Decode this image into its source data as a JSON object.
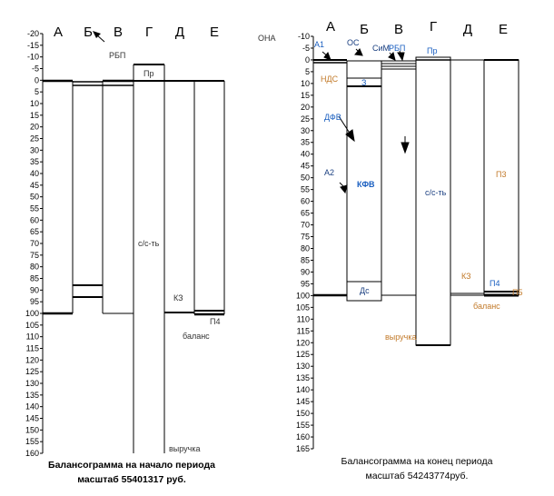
{
  "colors": {
    "line": "#000000",
    "label_gray": "#333333",
    "label_blue": "#1a5fc0",
    "label_orange": "#c27a2a"
  },
  "left": {
    "title": "Балансограмма на начало периода",
    "scale": "масштаб 55401317 руб.",
    "axis": {
      "min": -20,
      "max": 160,
      "step": 5
    },
    "columns": [
      "А",
      "Б",
      "В",
      "Г",
      "Д",
      "Е"
    ],
    "labels": {
      "rbp": "РБП",
      "pr": "Пр",
      "ss": "с/с-ть",
      "kz": "КЗ",
      "p4": "П4",
      "balance": "баланс",
      "revenue": "выручка",
      "ona": "ОНА"
    },
    "arrow_icon": "arrow-up-left-icon"
  },
  "right": {
    "title": "Балансограмма на конец периода",
    "scale": "масштаб 54243774руб.",
    "axis": {
      "min": -10,
      "max": 165,
      "step": 5
    },
    "columns": [
      "А",
      "Б",
      "В",
      "Г",
      "Д",
      "Е"
    ],
    "labels": {
      "a1": "А1",
      "os": "ОС",
      "sim": "СиМ",
      "rbp": "РБП",
      "pr": "Пр",
      "nds": "НДС",
      "z": "З",
      "dfv": "ДФВ",
      "a2": "А2",
      "kfv": "КФВ",
      "ds": "Дс",
      "ss": "с/с-ть",
      "revenue": "выручка",
      "kz": "КЗ",
      "p3": "П3",
      "p4": "П4",
      "p5": "П5",
      "balance": "баланс"
    }
  }
}
